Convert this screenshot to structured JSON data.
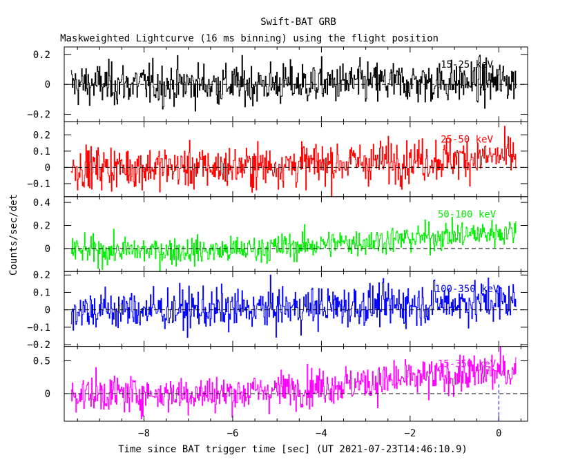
{
  "chart_data": {
    "type": "line",
    "title": "Swift-BAT GRB",
    "subtitle": "Maskweighted Lightcurve (16 ms binning) using the flight position",
    "xlabel": "Time since BAT trigger time [sec] (UT 2021-07-23T14:46:10.9)",
    "ylabel": "Counts/sec/det",
    "xlim": [
      -9.8,
      0.65
    ],
    "x_ticks": [
      -8,
      -6,
      -4,
      -2,
      0
    ],
    "x_tick_labels": [
      "−8",
      "−6",
      "−4",
      "−2",
      "0"
    ],
    "x_range": [
      -9.65,
      0.4
    ],
    "bin_width": 0.016,
    "trigger_marker_x": 0,
    "trigger_marker_color": "#0000ff",
    "grid": false,
    "series": [
      {
        "name": "15-25 keV",
        "color": "#000000",
        "ylim": [
          -0.25,
          0.25
        ],
        "y_ticks": [
          -0.2,
          0,
          0.2
        ],
        "y_tick_labels": [
          "−0.2",
          "0",
          "0.2"
        ],
        "mean_start": 0.0,
        "mean_end": 0.02,
        "noise_sd": 0.07
      },
      {
        "name": "25-50 keV",
        "color": "#ff0000",
        "ylim": [
          -0.18,
          0.28
        ],
        "y_ticks": [
          -0.1,
          0,
          0.1,
          0.2
        ],
        "y_tick_labels": [
          "−0.1",
          "0",
          "0.1",
          "0.2"
        ],
        "mean_start": 0.0,
        "mean_end": 0.07,
        "noise_sd": 0.065
      },
      {
        "name": "50-100 keV",
        "color": "#00ee00",
        "ylim": [
          -0.2,
          0.45
        ],
        "y_ticks": [
          0,
          0.2,
          0.4
        ],
        "y_tick_labels": [
          "0",
          "0.2",
          "0.4"
        ],
        "mean_start": -0.02,
        "mean_end": 0.15,
        "noise_sd": 0.06
      },
      {
        "name": "100-350 keV",
        "color": "#0000ff",
        "ylim": [
          -0.21,
          0.22
        ],
        "y_ticks": [
          -0.2,
          -0.1,
          0,
          0.1,
          0.2
        ],
        "y_tick_labels": [
          "−0.2",
          "−0.1",
          "0",
          "0.1",
          "0.2"
        ],
        "mean_start": 0.0,
        "mean_end": 0.05,
        "noise_sd": 0.06
      },
      {
        "name": "15-350 keV",
        "color": "#ff00ff",
        "ylim": [
          -0.42,
          0.72
        ],
        "y_ticks": [
          0,
          0.5
        ],
        "y_tick_labels": [
          "0",
          "0.5"
        ],
        "mean_start": 0.0,
        "mean_end": 0.35,
        "noise_sd": 0.14
      }
    ]
  }
}
